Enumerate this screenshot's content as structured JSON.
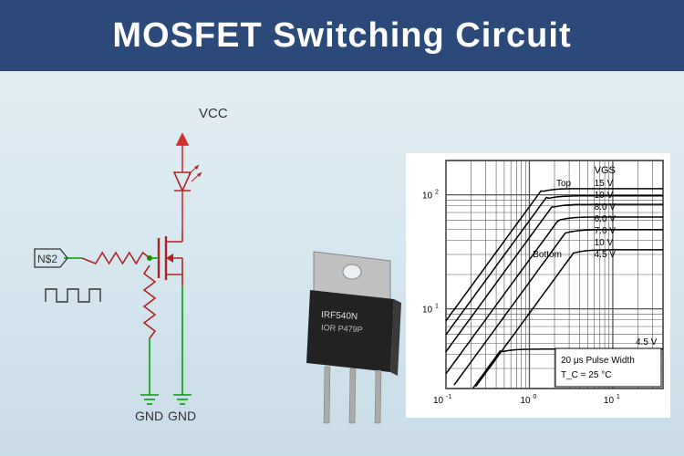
{
  "header": {
    "title": "MOSFET Switching Circuit"
  },
  "schematic": {
    "labels": {
      "vcc": "VCC",
      "gnd1": "GND",
      "gnd2": "GND",
      "input": "N$2"
    },
    "colors": {
      "wire_red": "#d32f2f",
      "wire_green": "#00a000",
      "component": "#b22222",
      "text": "#333333"
    },
    "line_width": 1.6
  },
  "component": {
    "part_label": "IRF540N",
    "heatsink_color": "#c0c0c0",
    "body_color": "#222222",
    "lead_color": "#aaaaaa"
  },
  "graph": {
    "type": "log-log-chart",
    "title": "",
    "xlim": [
      0.1,
      40
    ],
    "ylim": [
      2,
      200
    ],
    "x_decades": [
      0.1,
      1,
      10
    ],
    "y_decades": [
      10,
      100
    ],
    "vgs_label": "V_GS",
    "vgs_values": [
      "15 V",
      "10 V",
      "8.0 V",
      "6.0 V",
      "7.0 V",
      "10 V",
      "4.5 V"
    ],
    "side_labels": {
      "top": "Top",
      "bottom": "Bottom",
      "right": "4.5 V"
    },
    "note_lines": [
      "20 μs Pulse Width",
      "T_C = 25 °C"
    ],
    "axis_color": "#000000",
    "grid_color": "#555555",
    "curve_color": "#000000",
    "font_size": 10,
    "curves": [
      {
        "sat": 110,
        "knee": 1.4
      },
      {
        "sat": 95,
        "knee": 1.6
      },
      {
        "sat": 80,
        "knee": 1.9
      },
      {
        "sat": 62,
        "knee": 2.3
      },
      {
        "sat": 48,
        "knee": 2.8
      },
      {
        "sat": 32,
        "knee": 3.5
      },
      {
        "sat": 4.3,
        "knee": 0.45
      }
    ]
  }
}
